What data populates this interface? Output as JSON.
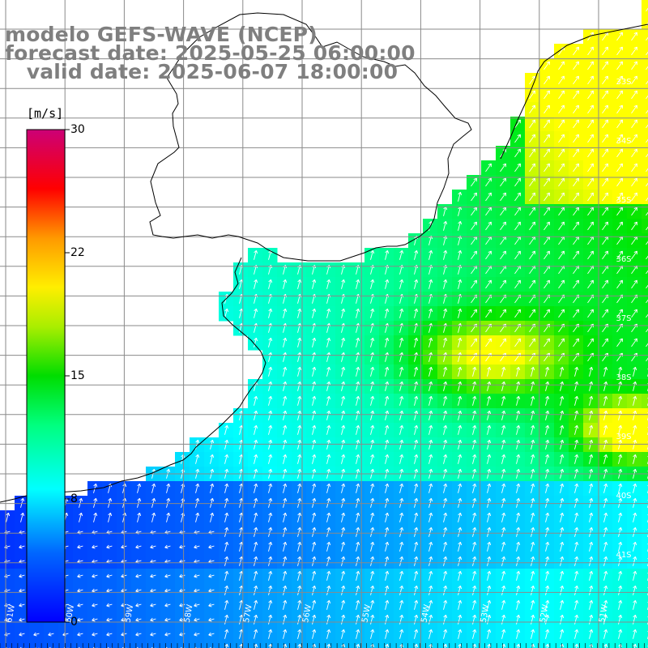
{
  "header": {
    "model_line": "modelo GEFS-WAVE (NCEP)",
    "forecast_line": "forecast date: 2025-05-25 06:00:00",
    "valid_line": "   valid date: 2025-06-07 18:00:00"
  },
  "colorbar": {
    "unit": "[m/s]",
    "ticks": [
      "30",
      "22",
      "15",
      "8",
      "0"
    ],
    "min": 0,
    "max": 30,
    "colors": [
      "#0000ff",
      "#00a0ff",
      "#00ffff",
      "#00ff7f",
      "#00dd00",
      "#ffff00",
      "#ff9900",
      "#ff0000",
      "#cc0077"
    ]
  },
  "lat_labels": [
    "33S",
    "34S",
    "35S",
    "36S",
    "37S",
    "38S",
    "39S",
    "40S",
    "41S"
  ],
  "lon_labels": [
    "61W",
    "60W",
    "59W",
    "58W",
    "57W",
    "56W",
    "55W",
    "54W",
    "53W",
    "52W",
    "51W"
  ],
  "field": {
    "variable": "wind speed and direction",
    "units": "m/s",
    "ocean_color": "#00e6ff",
    "land_color": "#ffffff"
  }
}
